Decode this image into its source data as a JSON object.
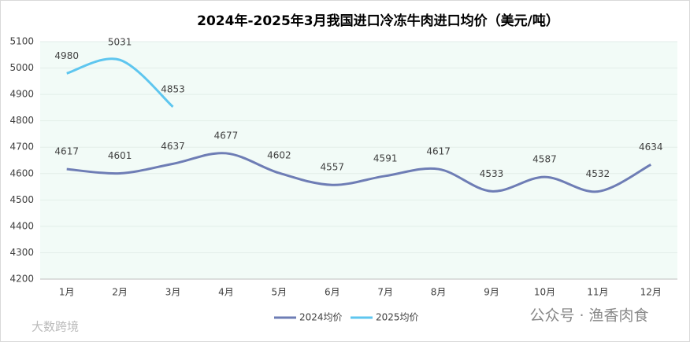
{
  "chart_data": {
    "type": "line",
    "title": "2024年-2025年3月我国进口冷冻牛肉进口均价（美元/吨）",
    "categories": [
      "1月",
      "2月",
      "3月",
      "4月",
      "5月",
      "6月",
      "7月",
      "8月",
      "9月",
      "10月",
      "11月",
      "12月"
    ],
    "series": [
      {
        "name": "2024均价",
        "color": "#6e7db5",
        "values": [
          4617,
          4601,
          4637,
          4677,
          4602,
          4557,
          4591,
          4617,
          4533,
          4587,
          4532,
          4634
        ]
      },
      {
        "name": "2025均价",
        "color": "#5ec6ef",
        "values": [
          4980,
          5031,
          4853,
          null,
          null,
          null,
          null,
          null,
          null,
          null,
          null,
          null
        ]
      }
    ],
    "ylim": [
      4200,
      5100
    ],
    "yticks": [
      4200,
      4300,
      4400,
      4500,
      4600,
      4700,
      4800,
      4900,
      5000,
      5100
    ],
    "grid": true,
    "legend": "bottom",
    "smooth": true,
    "data_labels": true,
    "watermarks": [
      "公众号 · 渔香肉食",
      "大数跨境"
    ]
  }
}
